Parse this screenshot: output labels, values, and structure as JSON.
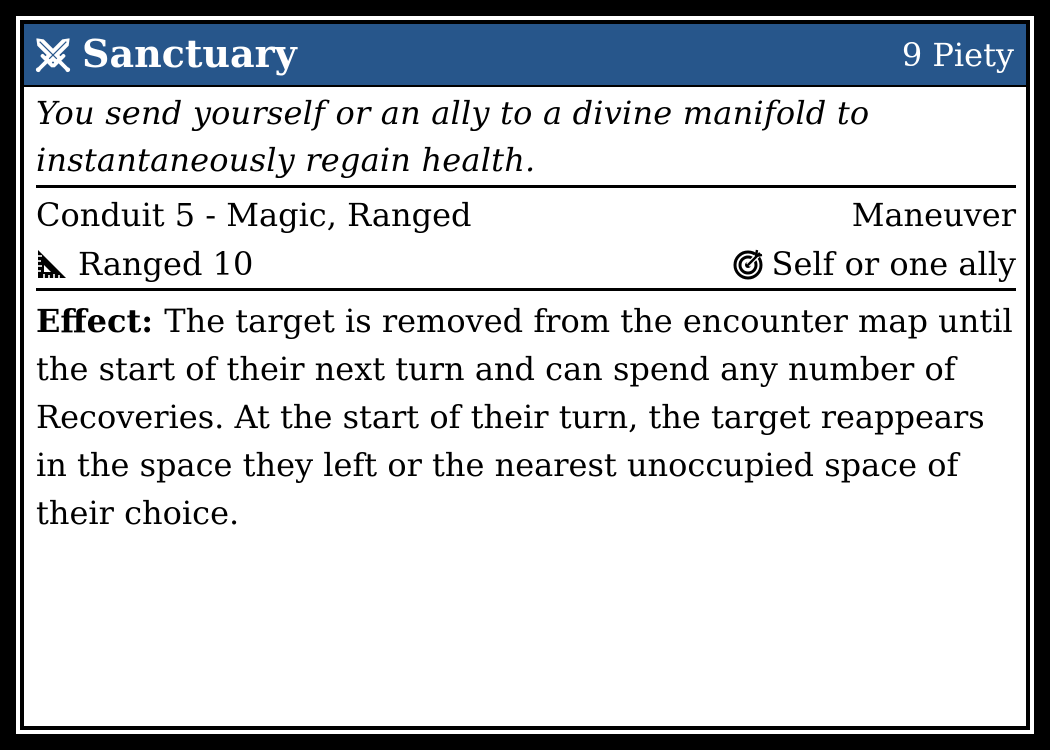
{
  "card": {
    "title": "Sanctuary",
    "cost": "9 Piety",
    "title_icon": "crossed-swords-icon",
    "flavor": "You send yourself or an ally to a divine manifold to instantaneously regain health.",
    "keywords": "Conduit 5 - Magic, Ranged",
    "action_type": "Maneuver",
    "distance_icon": "set-square-ruler-icon",
    "distance": "Ranged 10",
    "target_icon": "target-icon",
    "target": "Self or one ally",
    "effect_label": "Effect:",
    "effect_text": "The target is removed from the encounter map until the start of their next turn and can spend any number of Recoveries. At the start of their turn, the target reappears in the space they left or the nearest unoccupied space of their choice."
  },
  "colors": {
    "header_bg": "#27568b",
    "header_text": "#ffffff",
    "card_bg": "#ffffff",
    "border": "#000000"
  }
}
